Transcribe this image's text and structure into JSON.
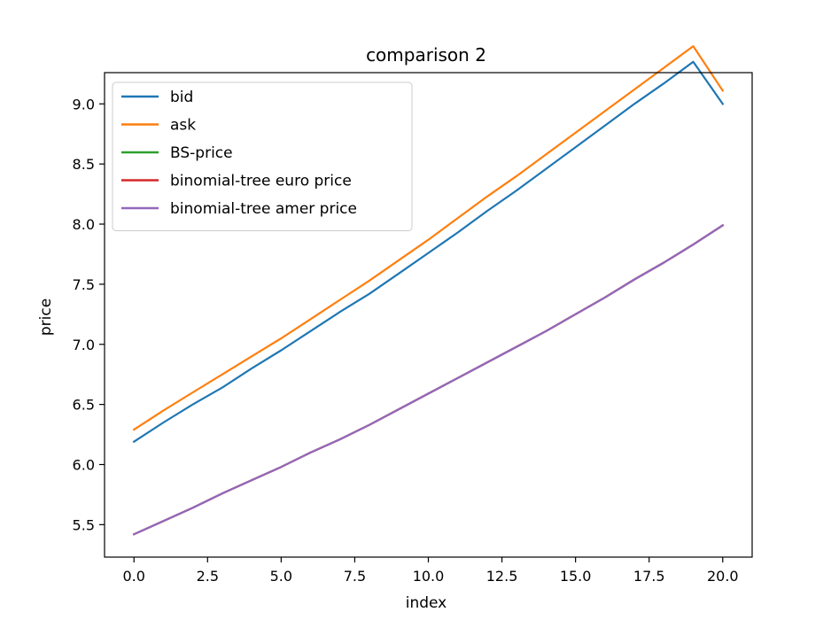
{
  "chart_data": {
    "type": "line",
    "title": "comparison 2",
    "xlabel": "index",
    "ylabel": "price",
    "xlim": [
      -1,
      21
    ],
    "ylim": [
      5.23,
      9.26
    ],
    "x_ticks": [
      0,
      2.5,
      5,
      7.5,
      10,
      12.5,
      15,
      17.5,
      20
    ],
    "x_tick_labels": [
      "0.0",
      "2.5",
      "5.0",
      "7.5",
      "10.0",
      "12.5",
      "15.0",
      "17.5",
      "20.0"
    ],
    "y_ticks": [
      5.5,
      6,
      6.5,
      7,
      7.5,
      8,
      8.5,
      9
    ],
    "y_tick_labels": [
      "5.5",
      "6.0",
      "6.5",
      "7.0",
      "7.5",
      "8.0",
      "8.5",
      "9.0"
    ],
    "grid": false,
    "legend_position": "top-left",
    "x": [
      0,
      1,
      2,
      3,
      4,
      5,
      6,
      7,
      8,
      9,
      10,
      11,
      12,
      13,
      14,
      15,
      16,
      17,
      18,
      19,
      20
    ],
    "series": [
      {
        "name": "bid",
        "color": "#1f77b4",
        "values": [
          6.19,
          6.35,
          6.5,
          6.64,
          6.8,
          6.95,
          7.11,
          7.27,
          7.42,
          7.59,
          7.76,
          7.93,
          8.11,
          8.28,
          8.46,
          8.64,
          8.82,
          9.0,
          9.17,
          9.35,
          9.0
        ]
      },
      {
        "name": "ask",
        "color": "#ff7f0e",
        "values": [
          6.29,
          6.45,
          6.6,
          6.75,
          6.9,
          7.05,
          7.21,
          7.37,
          7.53,
          7.7,
          7.87,
          8.05,
          8.23,
          8.4,
          8.58,
          8.76,
          8.94,
          9.12,
          9.3,
          9.48,
          9.11
        ]
      },
      {
        "name": "BS-price",
        "color": "#2ca02c",
        "values": [
          5.42,
          5.53,
          5.64,
          5.76,
          5.87,
          5.98,
          6.1,
          6.21,
          6.33,
          6.46,
          6.59,
          6.72,
          6.85,
          6.98,
          7.11,
          7.25,
          7.39,
          7.54,
          7.68,
          7.83,
          7.99
        ]
      },
      {
        "name": "binomial-tree euro price",
        "color": "#d62728",
        "values": [
          5.42,
          5.53,
          5.64,
          5.76,
          5.87,
          5.98,
          6.1,
          6.21,
          6.33,
          6.46,
          6.59,
          6.72,
          6.85,
          6.98,
          7.11,
          7.25,
          7.39,
          7.54,
          7.68,
          7.83,
          7.99
        ]
      },
      {
        "name": "binomial-tree amer price",
        "color": "#9467bd",
        "values": [
          5.42,
          5.53,
          5.64,
          5.76,
          5.87,
          5.98,
          6.1,
          6.21,
          6.33,
          6.46,
          6.59,
          6.72,
          6.85,
          6.98,
          7.11,
          7.25,
          7.39,
          7.54,
          7.68,
          7.83,
          7.99
        ]
      }
    ]
  }
}
